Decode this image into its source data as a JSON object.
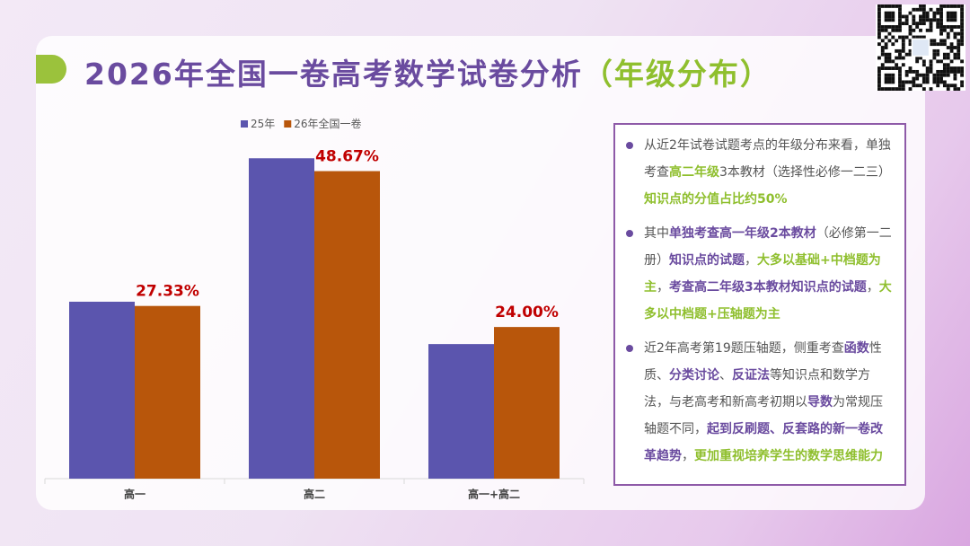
{
  "title_main": "2026年全国一卷高考数学试卷分析",
  "title_sub": "（年级分布）",
  "chart_data": {
    "type": "bar",
    "categories": [
      "高一",
      "高二",
      "高一+高二"
    ],
    "series": [
      {
        "name": "25年",
        "color": "#5b55ae",
        "values": [
          28,
          50.7,
          21.3
        ]
      },
      {
        "name": "26年全国一卷",
        "color": "#b8560b",
        "values": [
          27.33,
          48.67,
          24
        ],
        "value_labels": [
          "27.33%",
          "48.67%",
          "24.00%"
        ]
      }
    ],
    "ylim": [
      0,
      55
    ],
    "label_color": "#c00000"
  },
  "panel": {
    "bullets": [
      [
        {
          "text": "从近2年试卷试题考点的年级分布来看，单独考查",
          "style": "n"
        },
        {
          "text": "高二年级",
          "style": "g"
        },
        {
          "text": "3本教材（选择性必修一二三）",
          "style": "n"
        },
        {
          "text": "知识点的分值占比约50%",
          "style": "g"
        }
      ],
      [
        {
          "text": "其中",
          "style": "n"
        },
        {
          "text": "单独考查高一年级2本教材",
          "style": "p"
        },
        {
          "text": "（必修第一二册）",
          "style": "n"
        },
        {
          "text": "知识点的试题",
          "style": "p"
        },
        {
          "text": "，",
          "style": "n"
        },
        {
          "text": "大多以基础+中档题为主",
          "style": "g"
        },
        {
          "text": "，",
          "style": "n"
        },
        {
          "text": "考查高二年级3本教材知识点的试题",
          "style": "p"
        },
        {
          "text": "，",
          "style": "n"
        },
        {
          "text": "大多以中档题+压轴题为主",
          "style": "g"
        }
      ],
      [
        {
          "text": "近2年高考第19题压轴题，侧重考查",
          "style": "n"
        },
        {
          "text": "函数",
          "style": "p"
        },
        {
          "text": "性质、",
          "style": "n"
        },
        {
          "text": "分类讨论",
          "style": "p"
        },
        {
          "text": "、",
          "style": "n"
        },
        {
          "text": "反证法",
          "style": "p"
        },
        {
          "text": "等知识点和数学方法，与老高考和新高考初期以",
          "style": "n"
        },
        {
          "text": "导数",
          "style": "p"
        },
        {
          "text": "为常规压轴题不同，",
          "style": "n"
        },
        {
          "text": "起到反刷题、反套路的新一卷改革趋势",
          "style": "p"
        },
        {
          "text": "，",
          "style": "n"
        },
        {
          "text": "更加重视培养学生的数学思维能力",
          "style": "g"
        }
      ]
    ]
  }
}
